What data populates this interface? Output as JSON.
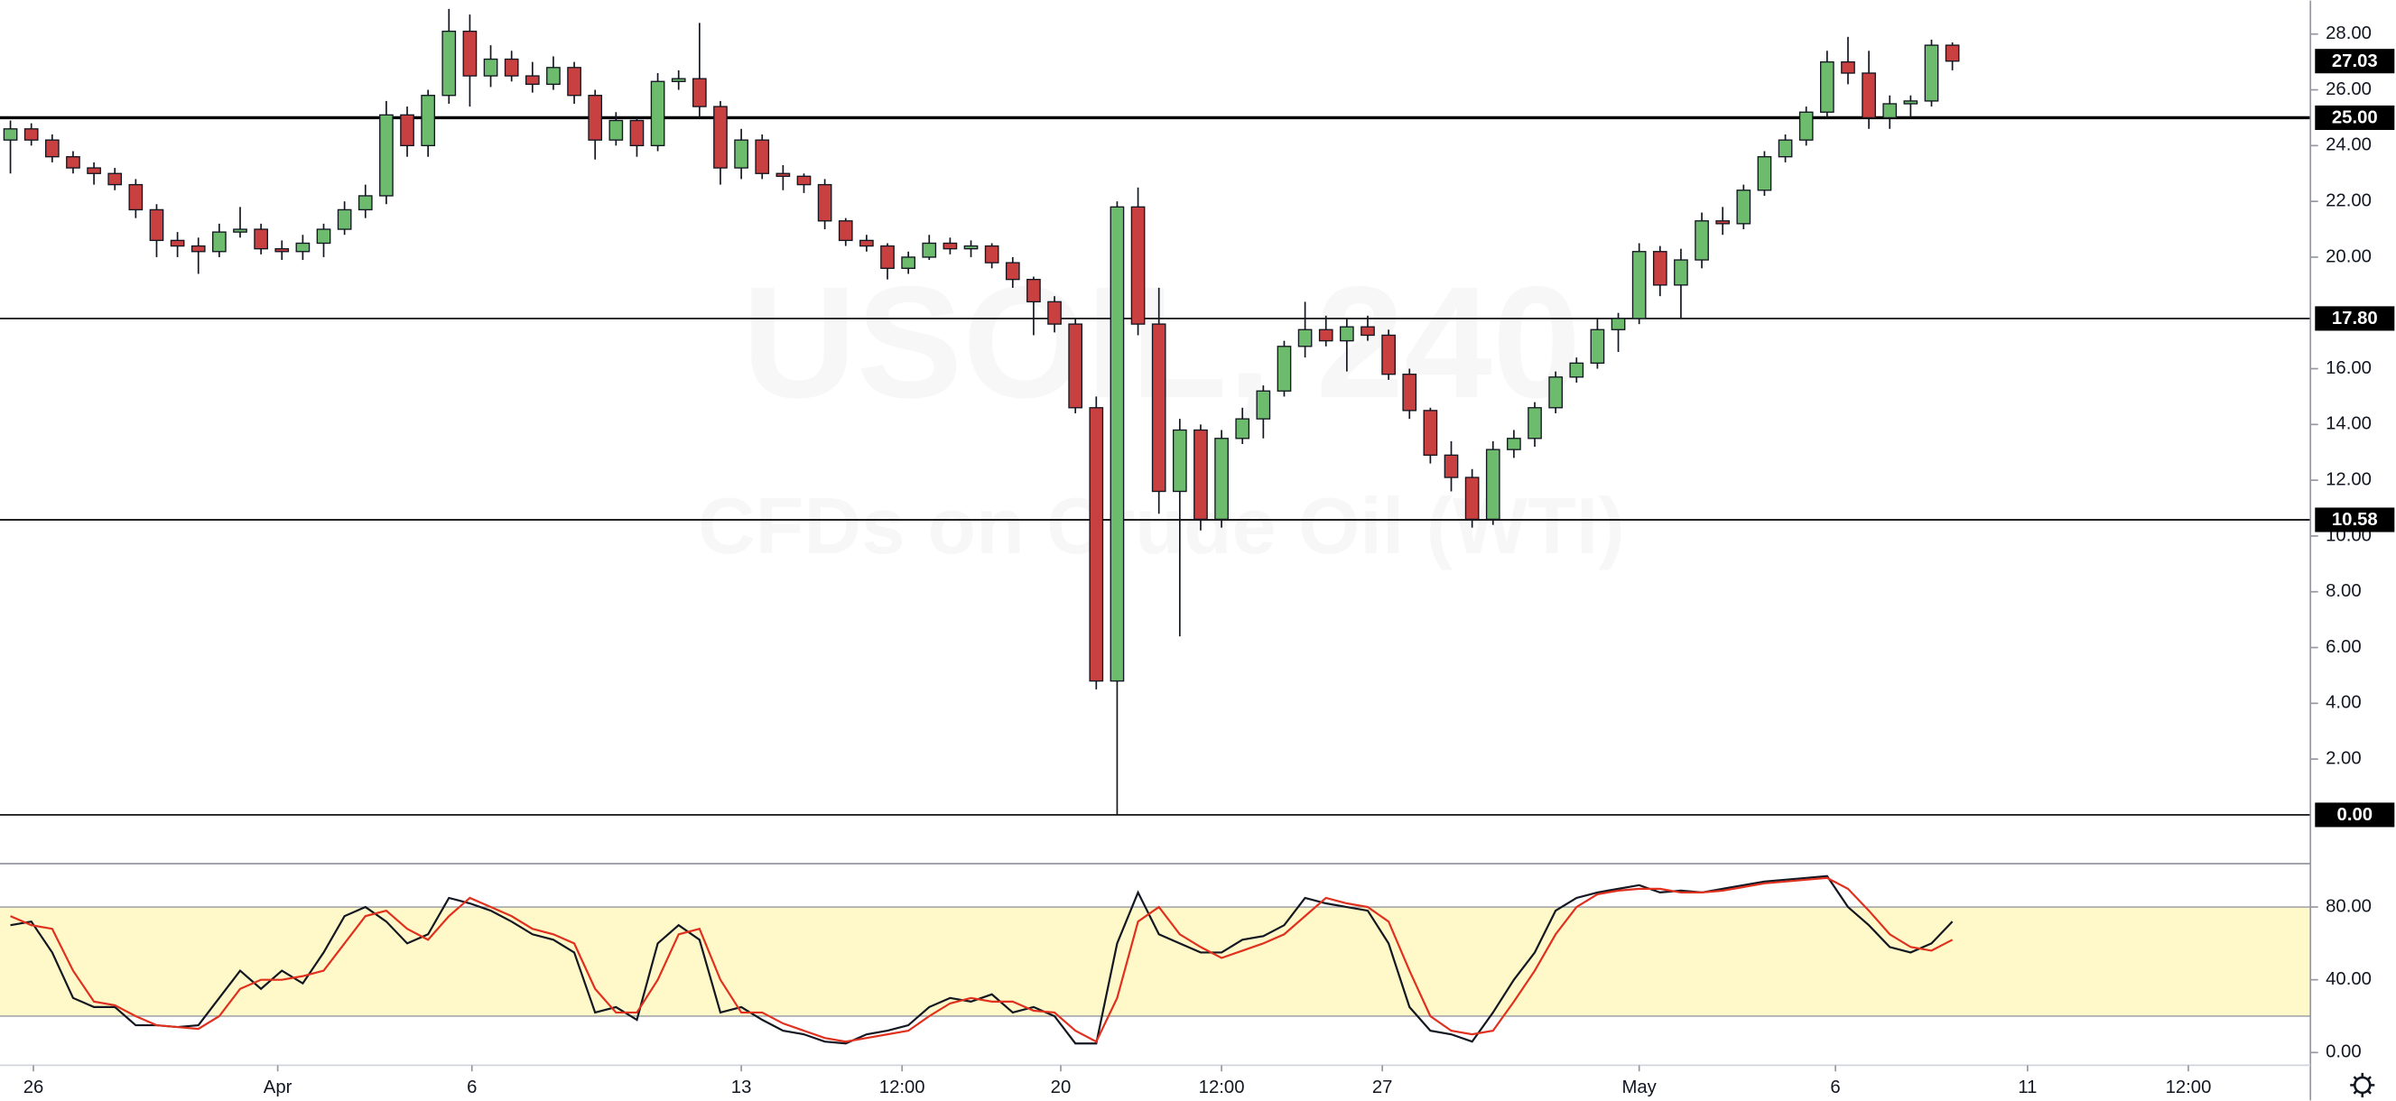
{
  "chart_data": {
    "type": "candlestick",
    "watermark_title": "USOIL, 240",
    "watermark_subtitle": "CFDs on Crude Oil (WTI)",
    "up_color": "#6dbb6d",
    "down_color": "#c94040",
    "open": [
      24.2,
      24.6,
      24.2,
      23.6,
      23.2,
      23.0,
      22.6,
      21.7,
      20.6,
      20.4,
      20.2,
      20.9,
      21.0,
      20.3,
      20.2,
      20.5,
      21.0,
      21.7,
      22.2,
      25.1,
      24.0,
      25.8,
      28.1,
      26.5,
      27.1,
      26.5,
      26.2,
      26.8,
      25.8,
      24.2,
      24.9,
      24.0,
      26.3,
      26.4,
      25.4,
      23.2,
      24.2,
      23.0,
      22.9,
      22.6,
      21.3,
      20.6,
      20.4,
      19.6,
      20.0,
      20.5,
      20.3,
      20.4,
      19.8,
      19.2,
      18.4,
      17.6,
      14.6,
      4.8,
      21.8,
      17.6,
      11.6,
      13.8,
      10.6,
      13.5,
      14.2,
      15.2,
      16.8,
      17.4,
      17.0,
      17.5,
      17.2,
      15.8,
      14.5,
      12.9,
      12.1,
      10.6,
      13.1,
      13.5,
      14.6,
      15.7,
      16.2,
      17.4,
      17.8,
      20.2,
      19.0,
      19.9,
      21.3,
      21.2,
      22.4,
      23.6,
      24.2,
      25.2,
      27.0,
      26.6,
      25.0,
      25.5,
      25.6,
      27.6
    ],
    "high": [
      24.9,
      24.8,
      24.4,
      23.8,
      23.4,
      23.2,
      22.8,
      21.9,
      20.9,
      20.7,
      21.2,
      21.8,
      21.2,
      20.6,
      20.8,
      21.2,
      22.0,
      22.6,
      25.6,
      25.4,
      26.0,
      28.9,
      28.7,
      27.6,
      27.4,
      27.0,
      27.2,
      27.0,
      26.0,
      25.2,
      25.0,
      26.6,
      26.7,
      28.4,
      25.6,
      24.6,
      24.4,
      23.3,
      23.0,
      22.8,
      21.4,
      20.8,
      20.5,
      20.2,
      20.8,
      20.7,
      20.6,
      20.5,
      20.0,
      19.3,
      18.6,
      17.8,
      15.0,
      22.0,
      22.5,
      18.9,
      14.2,
      14.0,
      13.8,
      14.6,
      15.4,
      17.0,
      18.4,
      17.9,
      17.8,
      17.9,
      17.4,
      16.0,
      14.6,
      13.4,
      12.4,
      13.4,
      13.8,
      14.8,
      15.9,
      16.4,
      17.8,
      18.0,
      20.5,
      20.4,
      20.3,
      21.6,
      21.8,
      22.6,
      23.8,
      24.4,
      25.4,
      27.4,
      27.9,
      27.4,
      25.8,
      25.8,
      27.8,
      27.7
    ],
    "low": [
      23.0,
      24.0,
      23.4,
      23.0,
      22.6,
      22.4,
      21.4,
      20.0,
      20.0,
      19.4,
      20.0,
      20.7,
      20.1,
      19.9,
      19.9,
      20.0,
      20.8,
      21.4,
      21.9,
      23.6,
      23.6,
      25.5,
      25.4,
      26.1,
      26.3,
      25.9,
      26.0,
      25.5,
      23.5,
      24.0,
      23.6,
      23.8,
      26.0,
      25.0,
      22.6,
      22.8,
      22.8,
      22.4,
      22.3,
      21.0,
      20.4,
      20.2,
      19.2,
      19.4,
      19.9,
      20.1,
      20.0,
      19.6,
      18.9,
      17.2,
      17.3,
      14.4,
      4.5,
      0,
      17.2,
      10.8,
      6.4,
      10.2,
      10.3,
      13.3,
      13.5,
      15.0,
      16.4,
      16.8,
      15.9,
      17.0,
      15.6,
      14.2,
      12.6,
      11.6,
      10.3,
      10.4,
      12.8,
      13.2,
      14.4,
      15.5,
      16.0,
      16.6,
      17.6,
      18.6,
      17.8,
      19.6,
      20.8,
      21.0,
      22.2,
      23.4,
      24.0,
      25.0,
      26.2,
      24.6,
      24.6,
      25.0,
      25.4,
      26.7
    ],
    "close": [
      24.6,
      24.2,
      23.6,
      23.2,
      23.0,
      22.6,
      21.7,
      20.6,
      20.4,
      20.2,
      20.9,
      21.0,
      20.3,
      20.2,
      20.5,
      21.0,
      21.7,
      22.2,
      25.1,
      24.0,
      25.8,
      28.1,
      26.5,
      27.1,
      26.5,
      26.2,
      26.8,
      25.8,
      24.2,
      24.9,
      24.0,
      26.3,
      26.4,
      25.4,
      23.2,
      24.2,
      23.0,
      22.9,
      22.6,
      21.3,
      20.6,
      20.4,
      19.6,
      20.0,
      20.5,
      20.3,
      20.4,
      19.8,
      19.2,
      18.4,
      17.6,
      14.6,
      4.8,
      21.8,
      17.6,
      11.6,
      13.8,
      10.6,
      13.5,
      14.2,
      15.2,
      16.8,
      17.4,
      17.0,
      17.5,
      17.2,
      15.8,
      14.5,
      12.9,
      12.1,
      10.6,
      13.1,
      13.5,
      14.6,
      15.7,
      16.2,
      17.4,
      17.8,
      20.2,
      19.0,
      19.9,
      21.3,
      21.2,
      22.4,
      23.6,
      24.2,
      25.2,
      27.0,
      26.6,
      25.0,
      25.5,
      25.6,
      27.6,
      27.03
    ],
    "xlim": [
      -0.5,
      110
    ],
    "xticks": [
      {
        "value": 1.1,
        "label": "26"
      },
      {
        "value": 12.8,
        "label": "Apr"
      },
      {
        "value": 22.1,
        "label": "6"
      },
      {
        "value": 35.0,
        "label": "13"
      },
      {
        "value": 42.7,
        "label": "12:00"
      },
      {
        "value": 50.3,
        "label": "20"
      },
      {
        "value": 58.0,
        "label": "12:00"
      },
      {
        "value": 65.7,
        "label": "27"
      },
      {
        "value": 78.0,
        "label": "May"
      },
      {
        "value": 87.4,
        "label": "6"
      },
      {
        "value": 96.6,
        "label": "11"
      },
      {
        "value": 104.3,
        "label": "12:00"
      }
    ],
    "ylim": [
      -1.64,
      29.2
    ],
    "yticks": [
      {
        "value": 2,
        "label": "2.00"
      },
      {
        "value": 4,
        "label": "4.00"
      },
      {
        "value": 6,
        "label": "6.00"
      },
      {
        "value": 8,
        "label": "8.00"
      },
      {
        "value": 10,
        "label": "10.00"
      },
      {
        "value": 12,
        "label": "12.00"
      },
      {
        "value": 14,
        "label": "14.00"
      },
      {
        "value": 16,
        "label": "16.00"
      },
      {
        "value": 20,
        "label": "20.00"
      },
      {
        "value": 22,
        "label": "22.00"
      },
      {
        "value": 24,
        "label": "24.00"
      },
      {
        "value": 26,
        "label": "26.00"
      },
      {
        "value": 28,
        "label": "28.00"
      }
    ],
    "hlines": [
      {
        "value": 25,
        "label": "25.00"
      },
      {
        "value": 17.8,
        "label": "17.80"
      },
      {
        "value": 10.58,
        "label": "10.58"
      },
      {
        "value": 0,
        "label": "0.00"
      }
    ],
    "hline_widths": [
      2,
      1,
      1,
      1
    ],
    "last_price": {
      "value": 27.03,
      "label": "27.03"
    },
    "indicator": {
      "type": "line",
      "ylim": [
        -7,
        103
      ],
      "yticks": [
        {
          "value": 0,
          "label": "0.00"
        },
        {
          "value": 40,
          "label": "40.00"
        },
        {
          "value": 80,
          "label": "80.00"
        }
      ],
      "band": [
        20,
        80
      ],
      "band_color": "#fff8c8",
      "series": [
        {
          "color": "#131722",
          "values": [
            70,
            72,
            55,
            30,
            25,
            25,
            15,
            15,
            14,
            15,
            30,
            45,
            35,
            45,
            38,
            55,
            75,
            80,
            72,
            60,
            65,
            85,
            82,
            78,
            72,
            65,
            62,
            55,
            22,
            25,
            18,
            60,
            70,
            62,
            22,
            25,
            18,
            12,
            10,
            6,
            5,
            10,
            12,
            15,
            25,
            30,
            28,
            32,
            22,
            25,
            20,
            5,
            5,
            60,
            88,
            65,
            60,
            55,
            55,
            62,
            64,
            70,
            85,
            82,
            80,
            78,
            60,
            25,
            12,
            10,
            6,
            22,
            40,
            55,
            78,
            85,
            88,
            90,
            92,
            88,
            89,
            88,
            90,
            92,
            94,
            95,
            96,
            97,
            80,
            70,
            58,
            55,
            60,
            72
          ]
        },
        {
          "color": "#e0301e",
          "values": [
            75,
            70,
            68,
            45,
            28,
            26,
            20,
            15,
            14,
            13,
            20,
            35,
            40,
            40,
            42,
            45,
            60,
            75,
            78,
            68,
            62,
            75,
            85,
            80,
            75,
            68,
            65,
            60,
            35,
            22,
            22,
            40,
            65,
            68,
            40,
            22,
            22,
            16,
            12,
            8,
            6,
            8,
            10,
            12,
            20,
            27,
            30,
            28,
            28,
            23,
            22,
            12,
            6,
            30,
            72,
            80,
            65,
            58,
            52,
            56,
            60,
            65,
            75,
            85,
            82,
            80,
            72,
            45,
            20,
            12,
            10,
            12,
            28,
            45,
            65,
            80,
            87,
            89,
            90,
            90,
            88,
            88,
            89,
            91,
            93,
            94,
            95,
            96,
            90,
            78,
            65,
            58,
            56,
            62
          ]
        }
      ]
    }
  }
}
